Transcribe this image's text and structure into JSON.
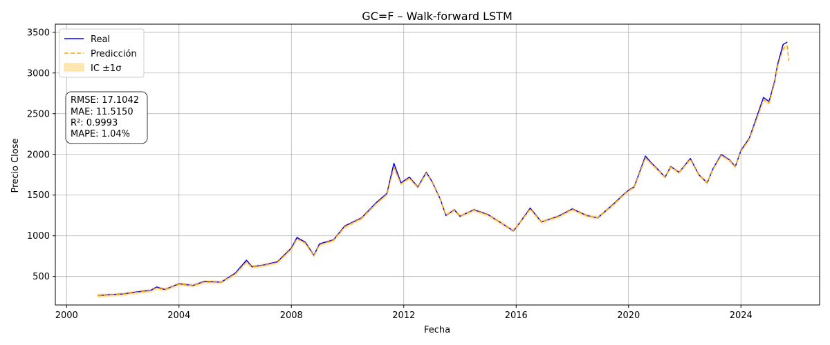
{
  "chart_data": {
    "type": "line",
    "title": "GC=F – Walk-forward LSTM",
    "xlabel": "Fecha",
    "ylabel": "Precio Close",
    "xlim": [
      1999.6,
      2026.8
    ],
    "ylim": [
      150,
      3600
    ],
    "x_ticks": [
      2000,
      2004,
      2008,
      2012,
      2016,
      2020,
      2024
    ],
    "y_ticks": [
      500,
      1000,
      1500,
      2000,
      2500,
      3000,
      3500
    ],
    "grid": true,
    "legend": {
      "placement": "top-left",
      "entries": [
        {
          "label": "Real",
          "color": "#0000ff",
          "style": "solid"
        },
        {
          "label": "Predicción",
          "color": "#ffa500",
          "style": "dashed"
        },
        {
          "label": "IC ±1σ",
          "color": "#ffa500",
          "style": "band"
        }
      ]
    },
    "metrics_box": {
      "lines": [
        "RMSE: 17.1042",
        "MAE: 11.5150",
        "R²: 0.9993",
        "MAPE: 1.04%"
      ]
    },
    "series": [
      {
        "name": "Real",
        "color": "#0000ff",
        "x": [
          2001.1,
          2001.5,
          2002.0,
          2002.5,
          2003.0,
          2003.2,
          2003.5,
          2004.0,
          2004.5,
          2004.9,
          2005.5,
          2006.0,
          2006.4,
          2006.6,
          2007.0,
          2007.5,
          2008.0,
          2008.2,
          2008.5,
          2008.8,
          2009.0,
          2009.5,
          2009.9,
          2010.5,
          2011.0,
          2011.4,
          2011.65,
          2011.9,
          2012.2,
          2012.5,
          2012.8,
          2013.0,
          2013.3,
          2013.5,
          2013.8,
          2014.0,
          2014.5,
          2015.0,
          2015.5,
          2015.9,
          2016.0,
          2016.5,
          2016.9,
          2017.5,
          2018.0,
          2018.5,
          2018.9,
          2019.5,
          2019.8,
          2020.0,
          2020.2,
          2020.6,
          2020.8,
          2021.0,
          2021.3,
          2021.5,
          2021.8,
          2022.2,
          2022.5,
          2022.8,
          2023.0,
          2023.3,
          2023.6,
          2023.8,
          2024.0,
          2024.3,
          2024.5,
          2024.8,
          2025.0,
          2025.2,
          2025.3,
          2025.5,
          2025.65
        ],
        "values": [
          265,
          275,
          285,
          310,
          330,
          370,
          340,
          410,
          390,
          440,
          430,
          540,
          700,
          620,
          640,
          680,
          850,
          980,
          920,
          760,
          900,
          950,
          1120,
          1220,
          1400,
          1520,
          1890,
          1650,
          1720,
          1600,
          1780,
          1670,
          1450,
          1250,
          1320,
          1240,
          1320,
          1260,
          1150,
          1060,
          1100,
          1340,
          1170,
          1240,
          1330,
          1250,
          1220,
          1400,
          1500,
          1560,
          1600,
          1980,
          1900,
          1830,
          1720,
          1850,
          1780,
          1950,
          1750,
          1650,
          1820,
          2000,
          1930,
          1850,
          2050,
          2200,
          2400,
          2700,
          2650,
          2900,
          3100,
          3350,
          3380
        ]
      },
      {
        "name": "Predicción",
        "color": "#ffa500",
        "x": [
          2001.1,
          2001.5,
          2002.0,
          2002.5,
          2003.0,
          2003.2,
          2003.5,
          2004.0,
          2004.5,
          2004.9,
          2005.5,
          2006.0,
          2006.4,
          2006.6,
          2007.0,
          2007.5,
          2008.0,
          2008.2,
          2008.5,
          2008.8,
          2009.0,
          2009.5,
          2009.9,
          2010.5,
          2011.0,
          2011.4,
          2011.65,
          2011.9,
          2012.2,
          2012.5,
          2012.8,
          2013.0,
          2013.3,
          2013.5,
          2013.8,
          2014.0,
          2014.5,
          2015.0,
          2015.5,
          2015.9,
          2016.0,
          2016.5,
          2016.9,
          2017.5,
          2018.0,
          2018.5,
          2018.9,
          2019.5,
          2019.8,
          2020.0,
          2020.2,
          2020.6,
          2020.8,
          2021.0,
          2021.3,
          2021.5,
          2021.8,
          2022.2,
          2022.5,
          2022.8,
          2023.0,
          2023.3,
          2023.6,
          2023.8,
          2024.0,
          2024.3,
          2024.5,
          2024.8,
          2025.0,
          2025.2,
          2025.3,
          2025.5,
          2025.65,
          2025.7
        ],
        "values": [
          262,
          272,
          282,
          305,
          325,
          360,
          338,
          405,
          388,
          432,
          428,
          530,
          680,
          615,
          635,
          672,
          840,
          965,
          910,
          755,
          890,
          945,
          1110,
          1215,
          1390,
          1510,
          1840,
          1640,
          1710,
          1595,
          1770,
          1665,
          1445,
          1255,
          1315,
          1240,
          1315,
          1255,
          1150,
          1065,
          1100,
          1330,
          1170,
          1235,
          1325,
          1248,
          1222,
          1395,
          1495,
          1555,
          1595,
          1960,
          1890,
          1825,
          1720,
          1845,
          1778,
          1940,
          1748,
          1652,
          1815,
          1990,
          1925,
          1848,
          2040,
          2190,
          2380,
          2670,
          2630,
          2880,
          3080,
          3300,
          3330,
          3150
        ]
      }
    ]
  }
}
